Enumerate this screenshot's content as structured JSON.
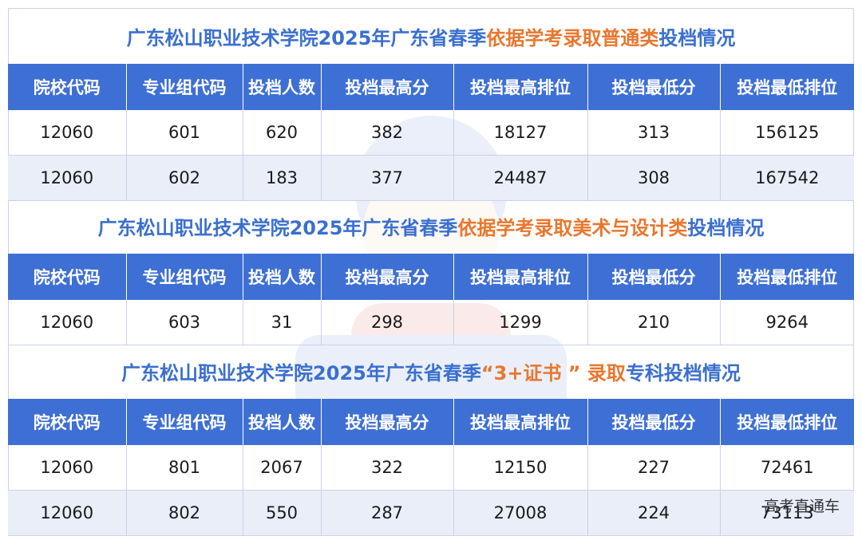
{
  "headers": [
    "院校代码",
    "专业组代码",
    "投档人数",
    "投档最高分",
    "投档最高排位",
    "投档最低分",
    "投档最低排位"
  ],
  "sections": [
    {
      "title_prefix": "广东松山职业技术学院2025年广东省春季",
      "title_highlight": "依据学考录取普通类",
      "title_suffix": "投档情况",
      "rows": [
        [
          "12060",
          "601",
          "620",
          "382",
          "18127",
          "313",
          "156125"
        ],
        [
          "12060",
          "602",
          "183",
          "377",
          "24487",
          "308",
          "167542"
        ]
      ]
    },
    {
      "title_prefix": "广东松山职业技术学院2025年广东省春季",
      "title_highlight": "依据学考录取美术与设计类",
      "title_suffix": "投档情况",
      "rows": [
        [
          "12060",
          "603",
          "31",
          "298",
          "1299",
          "210",
          "9264"
        ]
      ]
    },
    {
      "title_prefix": "广东松山职业技术学院2025年广东省春季",
      "title_highlight": "“3+证书 ” 录取",
      "title_suffix": "专科投档情况",
      "rows": [
        [
          "12060",
          "801",
          "2067",
          "322",
          "12150",
          "227",
          "72461"
        ],
        [
          "12060",
          "802",
          "550",
          "287",
          "27008",
          "224",
          "73113"
        ]
      ]
    }
  ],
  "footer_watermark": "高考直通车"
}
